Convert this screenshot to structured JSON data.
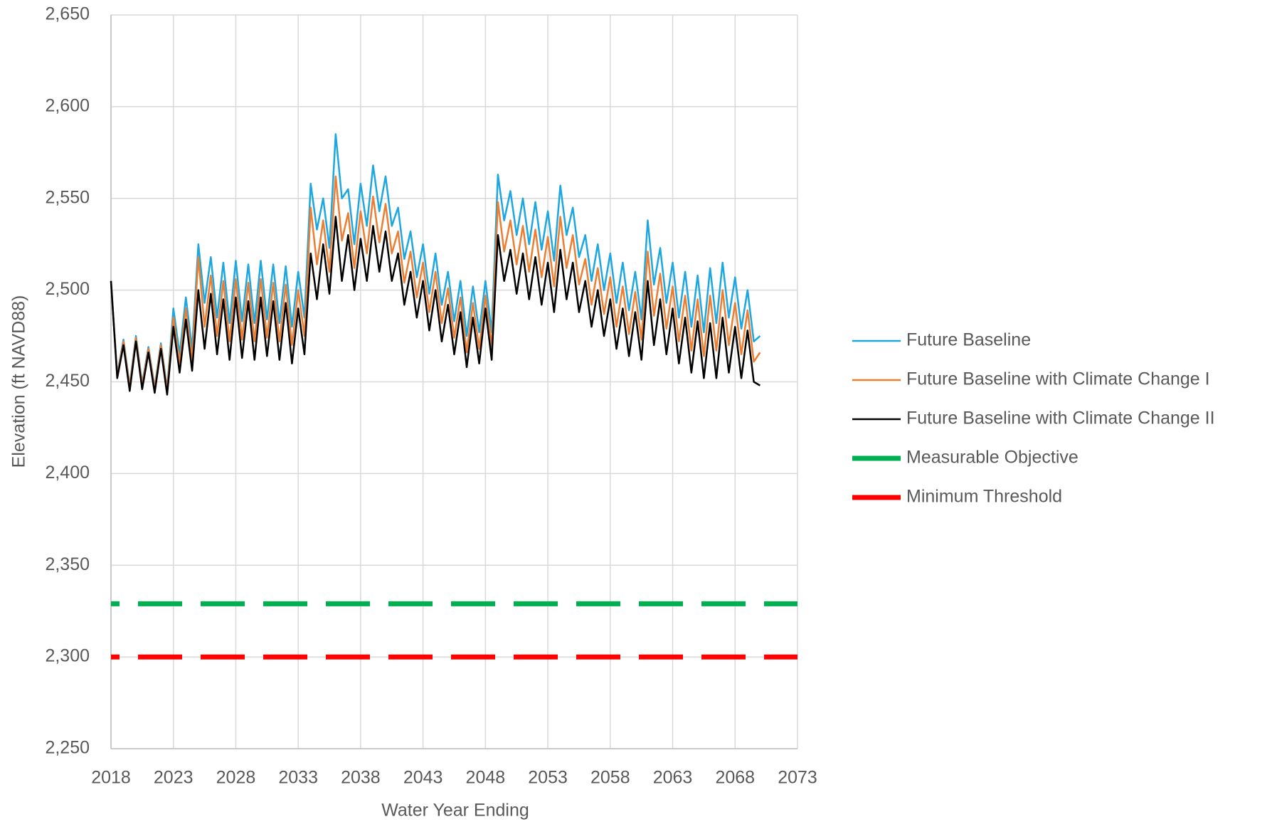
{
  "chart_data": {
    "type": "line",
    "xlabel": "Water Year Ending",
    "ylabel": "Elevation (ft NAVD88)",
    "x": [
      2018,
      2018.5,
      2019,
      2019.5,
      2020,
      2020.5,
      2021,
      2021.5,
      2022,
      2022.5,
      2023,
      2023.5,
      2024,
      2024.5,
      2025,
      2025.5,
      2026,
      2026.5,
      2027,
      2027.5,
      2028,
      2028.5,
      2029,
      2029.5,
      2030,
      2030.5,
      2031,
      2031.5,
      2032,
      2032.5,
      2033,
      2033.5,
      2034,
      2034.5,
      2035,
      2035.5,
      2036,
      2036.5,
      2037,
      2037.5,
      2038,
      2038.5,
      2039,
      2039.5,
      2040,
      2040.5,
      2041,
      2041.5,
      2042,
      2042.5,
      2043,
      2043.5,
      2044,
      2044.5,
      2045,
      2045.5,
      2046,
      2046.5,
      2047,
      2047.5,
      2048,
      2048.5,
      2049,
      2049.5,
      2050,
      2050.5,
      2051,
      2051.5,
      2052,
      2052.5,
      2053,
      2053.5,
      2054,
      2054.5,
      2055,
      2055.5,
      2056,
      2056.5,
      2057,
      2057.5,
      2058,
      2058.5,
      2059,
      2059.5,
      2060,
      2060.5,
      2061,
      2061.5,
      2062,
      2062.5,
      2063,
      2063.5,
      2064,
      2064.5,
      2065,
      2065.5,
      2066,
      2066.5,
      2067,
      2067.5,
      2068,
      2068.5,
      2069,
      2069.5,
      2070
    ],
    "series": [
      {
        "name": "Future Baseline",
        "color": "#1ca7e0",
        "width": 2.5,
        "values": [
          2505,
          2454,
          2473,
          2448,
          2475,
          2449,
          2469,
          2447,
          2471,
          2446,
          2490,
          2465,
          2496,
          2468,
          2525,
          2493,
          2518,
          2485,
          2515,
          2482,
          2516,
          2483,
          2514,
          2482,
          2516,
          2484,
          2514,
          2482,
          2513,
          2480,
          2510,
          2485,
          2558,
          2533,
          2550,
          2523,
          2585,
          2550,
          2555,
          2525,
          2558,
          2535,
          2568,
          2543,
          2562,
          2535,
          2545,
          2517,
          2532,
          2507,
          2525,
          2498,
          2520,
          2492,
          2510,
          2483,
          2505,
          2475,
          2502,
          2477,
          2505,
          2477,
          2563,
          2538,
          2554,
          2530,
          2550,
          2525,
          2548,
          2522,
          2543,
          2516,
          2557,
          2530,
          2545,
          2518,
          2530,
          2505,
          2525,
          2500,
          2520,
          2493,
          2515,
          2489,
          2510,
          2484,
          2538,
          2503,
          2523,
          2493,
          2515,
          2485,
          2510,
          2480,
          2508,
          2477,
          2512,
          2482,
          2515,
          2485,
          2507,
          2479,
          2500,
          2472,
          2475
        ]
      },
      {
        "name": "Future Baseline with Climate Change I",
        "color": "#ed7d31",
        "width": 2.5,
        "values": [
          2505,
          2453,
          2472,
          2447,
          2474,
          2448,
          2468,
          2446,
          2470,
          2445,
          2485,
          2460,
          2490,
          2462,
          2518,
          2480,
          2508,
          2475,
          2505,
          2472,
          2506,
          2473,
          2504,
          2472,
          2506,
          2474,
          2504,
          2472,
          2503,
          2470,
          2500,
          2475,
          2545,
          2514,
          2538,
          2510,
          2562,
          2527,
          2542,
          2512,
          2543,
          2520,
          2551,
          2526,
          2547,
          2520,
          2532,
          2504,
          2521,
          2496,
          2515,
          2488,
          2510,
          2482,
          2501,
          2474,
          2496,
          2466,
          2493,
          2468,
          2497,
          2469,
          2548,
          2521,
          2538,
          2514,
          2535,
          2510,
          2533,
          2507,
          2529,
          2502,
          2540,
          2512,
          2530,
          2503,
          2517,
          2492,
          2512,
          2487,
          2507,
          2480,
          2502,
          2476,
          2499,
          2473,
          2521,
          2486,
          2509,
          2479,
          2502,
          2472,
          2497,
          2467,
          2495,
          2464,
          2497,
          2467,
          2500,
          2470,
          2493,
          2465,
          2489,
          2461,
          2466
        ]
      },
      {
        "name": "Future Baseline with Climate Change II",
        "color": "#000000",
        "width": 2.5,
        "values": [
          2505,
          2452,
          2470,
          2445,
          2472,
          2446,
          2466,
          2444,
          2468,
          2443,
          2480,
          2455,
          2484,
          2456,
          2500,
          2468,
          2498,
          2465,
          2495,
          2462,
          2496,
          2463,
          2494,
          2462,
          2496,
          2464,
          2494,
          2462,
          2493,
          2460,
          2490,
          2465,
          2520,
          2495,
          2525,
          2498,
          2540,
          2505,
          2530,
          2500,
          2528,
          2505,
          2535,
          2510,
          2532,
          2505,
          2520,
          2492,
          2510,
          2485,
          2505,
          2478,
          2500,
          2472,
          2492,
          2465,
          2488,
          2458,
          2485,
          2460,
          2490,
          2462,
          2530,
          2505,
          2522,
          2498,
          2520,
          2495,
          2518,
          2492,
          2515,
          2488,
          2522,
          2495,
          2515,
          2488,
          2505,
          2480,
          2500,
          2475,
          2495,
          2468,
          2490,
          2464,
          2488,
          2462,
          2505,
          2470,
          2495,
          2465,
          2490,
          2460,
          2485,
          2455,
          2483,
          2452,
          2482,
          2452,
          2485,
          2455,
          2480,
          2452,
          2478,
          2450,
          2448
        ]
      },
      {
        "name": "Measurable Objective",
        "color": "#00b050",
        "width": 7,
        "dashed": true,
        "x": [
          2018,
          2073
        ],
        "values": [
          2329,
          2329
        ]
      },
      {
        "name": "Minimum Threshold",
        "color": "#ff0000",
        "width": 7,
        "dashed": true,
        "x": [
          2018,
          2073
        ],
        "values": [
          2300,
          2300
        ]
      }
    ],
    "xlim": [
      2018,
      2073
    ],
    "xticks": [
      2018,
      2023,
      2028,
      2033,
      2038,
      2043,
      2048,
      2053,
      2058,
      2063,
      2068,
      2073
    ],
    "ylim": [
      2250,
      2650
    ],
    "yticks": [
      {
        "value": 2250,
        "label": "2,250"
      },
      {
        "value": 2300,
        "label": "2,300"
      },
      {
        "value": 2350,
        "label": "2,350"
      },
      {
        "value": 2400,
        "label": "2,400"
      },
      {
        "value": 2450,
        "label": "2,450"
      },
      {
        "value": 2500,
        "label": "2,500"
      },
      {
        "value": 2550,
        "label": "2,550"
      },
      {
        "value": 2600,
        "label": "2,600"
      },
      {
        "value": 2650,
        "label": "2,650"
      }
    ],
    "grid": true,
    "legend": "right"
  }
}
